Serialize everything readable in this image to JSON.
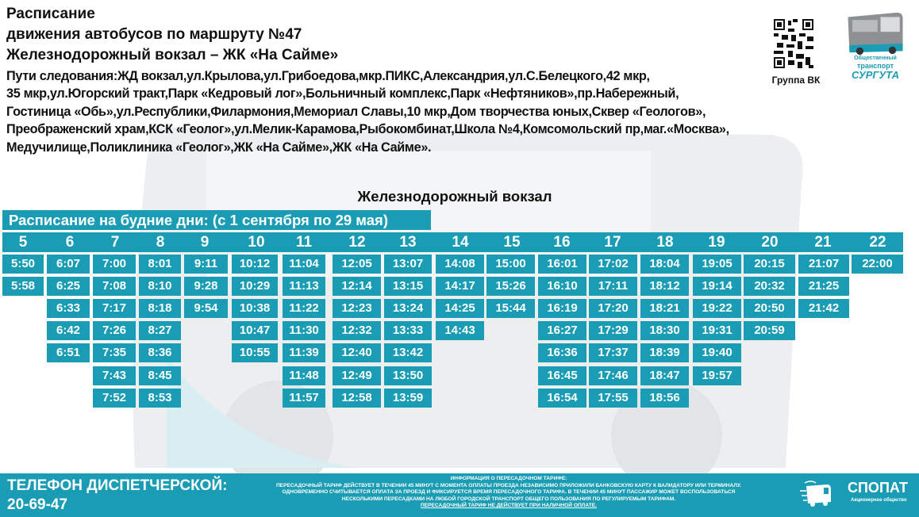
{
  "header": {
    "title_line1": "Расписание",
    "title_line2": "движения автобусов по маршруту №47",
    "title_line3": "Железнодорожный вокзал – ЖК «На Сайме»",
    "route_lines": [
      "Пути следования:ЖД вокзал,ул.Крылова,ул.Грибоедова,мкр.ПИКС,Александрия,ул.С.Белецкого,42 мкр,",
      "35 мкр,ул.Югорский тракт,Парк «Кедровый лог»,Больничный комплекс,Парк «Нефтяников»,пр.Набережный,",
      "Гостиница «Обь»,ул.Республики,Филармония,Мемориал Славы,10 мкр,Дом творчества юных,Сквер «Геологов»,",
      "Преображенский храм,КСК «Геолог»,ул.Мелик-Карамова,Рыбокомбинат,Школа №4,Комсомольский пр,маг.«Москва»,",
      "Медучилище,Поликлиника «Геолог»,ЖК «На Сайме»,ЖК «На Сайме»."
    ],
    "qr_label": "Группа ВК",
    "brand_logo": {
      "line1": "Общественный",
      "line2": "транспорт",
      "line3": "СУРГУТА"
    }
  },
  "schedule": {
    "stop_name": "Железнодорожный вокзал",
    "period_label": "Расписание на будние дни: (с 1 сентября по 29 мая)",
    "columns": [
      {
        "hour": "5",
        "times": [
          "5:50",
          "5:58"
        ]
      },
      {
        "hour": "6",
        "times": [
          "6:07",
          "6:25",
          "6:33",
          "6:42",
          "6:51"
        ]
      },
      {
        "hour": "7",
        "times": [
          "7:00",
          "7:08",
          "7:17",
          "7:26",
          "7:35",
          "7:43",
          "7:52"
        ]
      },
      {
        "hour": "8",
        "times": [
          "8:01",
          "8:10",
          "8:18",
          "8:27",
          "8:36",
          "8:45",
          "8:53"
        ]
      },
      {
        "hour": "9",
        "times": [
          "9:11",
          "9:28",
          "9:54"
        ]
      },
      {
        "hour": "10",
        "times": [
          "10:12",
          "10:29",
          "10:38",
          "10:47",
          "10:55"
        ]
      },
      {
        "hour": "11",
        "times": [
          "11:04",
          "11:13",
          "11:22",
          "11:30",
          "11:39",
          "11:48",
          "11:57"
        ]
      },
      {
        "hour": "12",
        "times": [
          "12:05",
          "12:14",
          "12:23",
          "12:32",
          "12:40",
          "12:49",
          "12:58"
        ]
      },
      {
        "hour": "13",
        "times": [
          "13:07",
          "13:15",
          "13:24",
          "13:33",
          "13:42",
          "13:50",
          "13:59"
        ]
      },
      {
        "hour": "14",
        "times": [
          "14:08",
          "14:17",
          "14:25",
          "14:43"
        ]
      },
      {
        "hour": "15",
        "times": [
          "15:00",
          "15:26",
          "15:44"
        ]
      },
      {
        "hour": "16",
        "times": [
          "16:01",
          "16:10",
          "16:19",
          "16:27",
          "16:36",
          "16:45",
          "16:54"
        ]
      },
      {
        "hour": "17",
        "times": [
          "17:02",
          "17:11",
          "17:20",
          "17:29",
          "17:37",
          "17:46",
          "17:55"
        ]
      },
      {
        "hour": "18",
        "times": [
          "18:04",
          "18:12",
          "18:21",
          "18:30",
          "18:39",
          "18:47",
          "18:56"
        ]
      },
      {
        "hour": "19",
        "times": [
          "19:05",
          "19:14",
          "19:22",
          "19:31",
          "19:40",
          "19:57"
        ]
      },
      {
        "hour": "20",
        "times": [
          "20:15",
          "20:32",
          "20:50",
          "20:59"
        ]
      },
      {
        "hour": "21",
        "times": [
          "21:07",
          "21:25",
          "21:42"
        ]
      },
      {
        "hour": "22",
        "times": [
          "22:00"
        ]
      }
    ]
  },
  "footer": {
    "phone_label": "ТЕЛЕФОН ДИСПЕТЧЕРСКОЙ:",
    "phone_number": "20-69-47",
    "info_title": "ИНФОРМАЦИЯ О ПЕРЕСАДОЧНОМ ТАРИФЕ:",
    "info_lines": [
      "ПЕРЕСАДОЧНЫЙ ТАРИФ ДЕЙСТВУЕТ В ТЕЧЕНИИ 45 МИНУТ С МОМЕНТА ОПЛАТЫ ПРОЕЗДА НЕЗАВИСИМО ПРИЛОЖИЛИ БАНКОВСКУЮ КАРТУ К ВАЛИДАТОРУ ИЛИ ТЕРМИНАЛУ.",
      "ОДНОВРЕМЕННО СЧИТЫВАЕТСЯ ОПЛАТА ЗА ПРОЕЗД И ФИКСИРУЕТСЯ ВРЕМЯ ПЕРЕСАДОЧНОГО ТАРИФА. В ТЕЧЕНИИ 45 МИНУТ ПАССАЖИР МОЖЕТ ВОСПОЛЬЗОВАТЬСЯ",
      "НЕСКОЛЬКИМИ ПЕРЕСАДКАМИ НА ЛЮБОЙ ГОРОДСКОЙ ТРАНСПОРТ ОБЩЕГО ПОЛЬЗОВАНИЯ ПО РЕГУЛИРУЕМЫМ ТАРИФАМ."
    ],
    "info_note": "ПЕРЕСАДОЧНЫЙ ТАРИФ НЕ ДЕЙСТВУЕТ ПРИ НАЛИЧНОЙ ОПЛАТЕ.",
    "company_name": "СПОПАТ",
    "company_sub": "Акционерное общество"
  },
  "colors": {
    "accent": "#1a9cb4",
    "text": "#111111",
    "watermark": "#e6e8ea"
  },
  "icons": {
    "qr": "qr-code-icon",
    "brand": "bus-logo-icon",
    "company": "spopat-bus-icon"
  }
}
